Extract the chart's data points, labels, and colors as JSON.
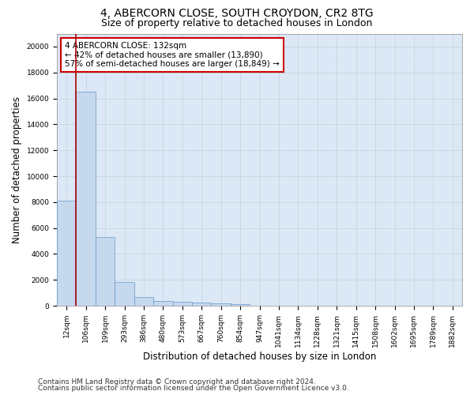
{
  "title_line1": "4, ABERCORN CLOSE, SOUTH CROYDON, CR2 8TG",
  "title_line2": "Size of property relative to detached houses in London",
  "xlabel": "Distribution of detached houses by size in London",
  "ylabel": "Number of detached properties",
  "categories": [
    "12sqm",
    "106sqm",
    "199sqm",
    "293sqm",
    "386sqm",
    "480sqm",
    "573sqm",
    "667sqm",
    "760sqm",
    "854sqm",
    "947sqm",
    "1041sqm",
    "1134sqm",
    "1228sqm",
    "1321sqm",
    "1415sqm",
    "1508sqm",
    "1602sqm",
    "1695sqm",
    "1789sqm",
    "1882sqm"
  ],
  "values": [
    8100,
    16500,
    5300,
    1850,
    700,
    380,
    290,
    220,
    190,
    150,
    0,
    0,
    0,
    0,
    0,
    0,
    0,
    0,
    0,
    0,
    0
  ],
  "bar_color": "#c5d8ee",
  "bar_edge_color": "#6699cc",
  "vline_x": 0.5,
  "vline_color": "#aa0000",
  "annotation_text": "4 ABERCORN CLOSE: 132sqm\n← 42% of detached houses are smaller (13,890)\n57% of semi-detached houses are larger (18,849) →",
  "annotation_box_color": "#cc0000",
  "ylim": [
    0,
    21000
  ],
  "yticks": [
    0,
    2000,
    4000,
    6000,
    8000,
    10000,
    12000,
    14000,
    16000,
    18000,
    20000
  ],
  "grid_color": "#c8d4e0",
  "background_color": "#dce8f5",
  "footer_line1": "Contains HM Land Registry data © Crown copyright and database right 2024.",
  "footer_line2": "Contains public sector information licensed under the Open Government Licence v3.0.",
  "title_fontsize": 10,
  "subtitle_fontsize": 9,
  "axis_label_fontsize": 8.5,
  "tick_fontsize": 6.5,
  "annotation_fontsize": 7.5,
  "footer_fontsize": 6.5
}
